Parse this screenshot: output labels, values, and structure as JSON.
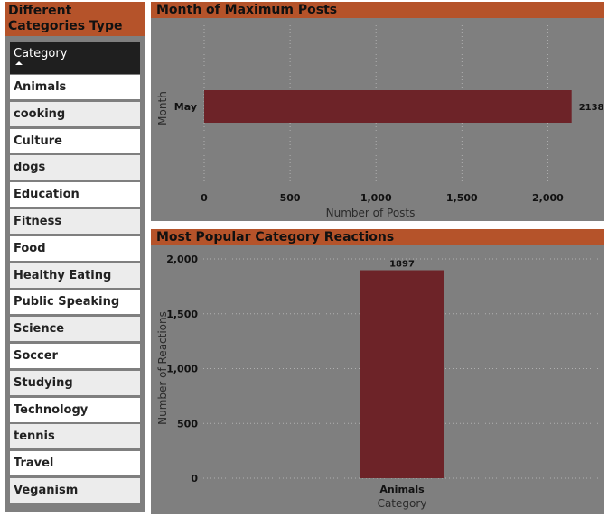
{
  "slicer": {
    "title": "Different Categories Type",
    "header": "Category",
    "items": [
      "Animals",
      "cooking",
      "Culture",
      "dogs",
      "Education",
      "Fitness",
      "Food",
      "Healthy Eating",
      "Public Speaking",
      "Science",
      "Soccer",
      "Studying",
      "Technology",
      "tennis",
      "Travel",
      "Veganism"
    ]
  },
  "colors": {
    "bar": "#6d2328",
    "title_bar": "#b5532a",
    "panel": "#7f7f7f"
  },
  "chart_data": [
    {
      "type": "bar",
      "orientation": "horizontal",
      "title": "Month of Maximum Posts",
      "categories": [
        "May"
      ],
      "values": [
        2138
      ],
      "data_labels": [
        "2138"
      ],
      "xlabel": "Number of Posts",
      "ylabel": "Month",
      "xlim": [
        0,
        2250
      ],
      "xticks": [
        0,
        500,
        1000,
        1500,
        2000
      ],
      "xtick_labels": [
        "0",
        "500",
        "1,000",
        "1,500",
        "2,000"
      ],
      "grid": true
    },
    {
      "type": "bar",
      "orientation": "vertical",
      "title": "Most Popular Category Reactions",
      "categories": [
        "Animals"
      ],
      "values": [
        1897
      ],
      "data_labels": [
        "1897"
      ],
      "xlabel": "Category",
      "ylabel": "Number of Reactions",
      "ylim": [
        0,
        2000
      ],
      "yticks": [
        0,
        500,
        1000,
        1500,
        2000
      ],
      "ytick_labels": [
        "0",
        "500",
        "1,000",
        "1,500",
        "2,000"
      ],
      "grid": true
    }
  ]
}
